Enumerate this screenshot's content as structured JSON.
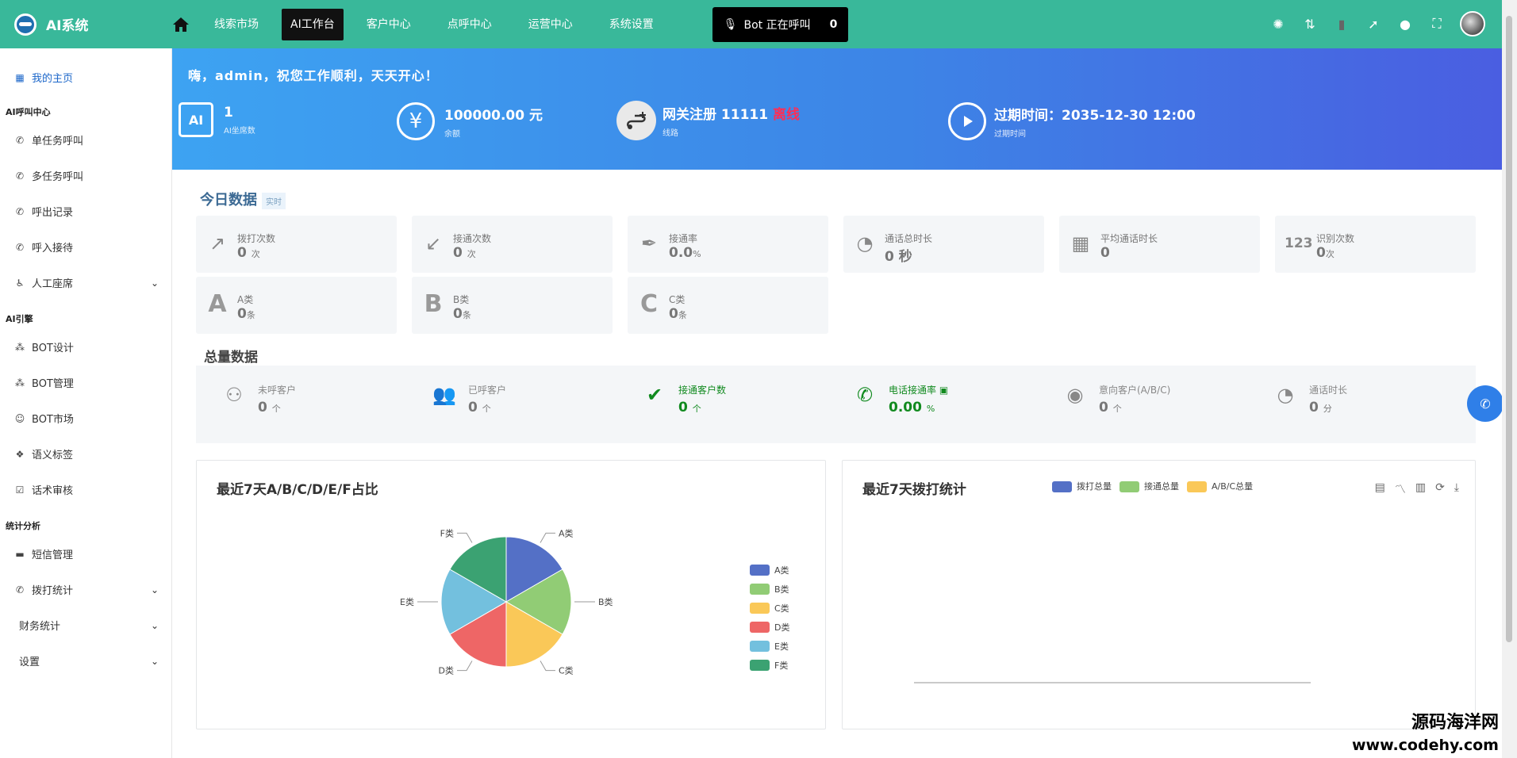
{
  "app": {
    "name": "AI系统"
  },
  "topnav": {
    "items": [
      "线索市场",
      "AI工作台",
      "客户中心",
      "点呼中心",
      "运营中心",
      "系统设置"
    ],
    "active": "AI工作台",
    "bot_status": "Bot 正在呼叫",
    "bot_count": "0"
  },
  "sidebar": {
    "home": "我的主页",
    "sections": [
      {
        "title": "AI呼叫中心",
        "items": [
          "单任务呼叫",
          "多任务呼叫",
          "呼出记录",
          "呼入接待",
          "人工座席"
        ]
      },
      {
        "title": "AI引擎",
        "items": [
          "BOT设计",
          "BOT管理",
          "BOT市场",
          "语义标签",
          "话术审核"
        ]
      },
      {
        "title": "统计分析",
        "items": [
          "短信管理",
          "拨打统计",
          "财务统计",
          "设置"
        ]
      }
    ]
  },
  "banner": {
    "greeting": "嗨，admin，祝您工作顺利，天天开心！",
    "seats_value": "1",
    "seats_label": "AI坐席数",
    "balance_value": "100000.00 元",
    "balance_label": "余额",
    "gateway_prefix": "网关注册 11111",
    "gateway_status": "离线",
    "gateway_label": "线路",
    "expiry_prefix": "过期时间：",
    "expiry_value": "2035-12-30 12:00",
    "expiry_label": "过期时间"
  },
  "today": {
    "title": "今日数据",
    "tag": "实时",
    "cards": [
      {
        "label": "拨打次数",
        "value": "0",
        "unit": "次",
        "icon": "arrow-up-right-icon"
      },
      {
        "label": "接通次数",
        "value": "0",
        "unit": "次",
        "icon": "call-received-icon"
      },
      {
        "label": "接通率",
        "value": "0.0",
        "unit": "%",
        "icon": "feather-icon"
      },
      {
        "label": "通话总时长",
        "value": "0 秒",
        "unit": "",
        "icon": "timer-icon"
      },
      {
        "label": "平均通话时长",
        "value": "0",
        "unit": "",
        "icon": "calendar-clock-icon"
      },
      {
        "label": "识别次数",
        "value": "0",
        "unit": "次",
        "icon": "numbers-icon"
      },
      {
        "label": "A类",
        "value": "0",
        "unit": "条",
        "icon": "letter-a-icon"
      },
      {
        "label": "B类",
        "value": "0",
        "unit": "条",
        "icon": "letter-b-icon"
      },
      {
        "label": "C类",
        "value": "0",
        "unit": "条",
        "icon": "letter-c-icon"
      }
    ]
  },
  "totals": {
    "title": "总量数据",
    "items": [
      {
        "label": "未呼客户",
        "value": "0",
        "unit": "个"
      },
      {
        "label": "已呼客户",
        "value": "0",
        "unit": "个"
      },
      {
        "label": "接通客户数",
        "value": "0",
        "unit": "个"
      },
      {
        "label": "电话接通率",
        "value": "0.00",
        "unit": "%"
      },
      {
        "label": "意向客户(A/B/C)",
        "value": "0",
        "unit": "个"
      },
      {
        "label": "通话时长",
        "value": "0",
        "unit": "分"
      }
    ]
  },
  "pie_panel": {
    "title": "最近7天A/B/C/D/E/F占比"
  },
  "line_panel": {
    "title": "最近7天拨打统计"
  },
  "watermark": {
    "line1": "源码海洋网",
    "line2": "www.codehy.com"
  },
  "colors": {
    "accent": "#39b89a",
    "banner_start": "#3da3f2",
    "banner_end": "#4a5ee1",
    "green": "#118a1f",
    "offline": "#ff2d55"
  },
  "chart_data": [
    {
      "type": "pie",
      "title": "最近7天A/B/C/D/E/F占比",
      "categories": [
        "A类",
        "B类",
        "C类",
        "D类",
        "E类",
        "F类"
      ],
      "values": [
        1,
        1,
        1,
        1,
        1,
        1
      ],
      "colors": [
        "#5470c6",
        "#91cc75",
        "#fac858",
        "#ee6666",
        "#73c0de",
        "#3ba272"
      ],
      "legend": "right"
    },
    {
      "type": "line",
      "title": "最近7天拨打统计",
      "series": [
        {
          "name": "拨打总量",
          "values": [
            0,
            0,
            0,
            0,
            0,
            0,
            0
          ],
          "color": "#5470c6"
        },
        {
          "name": "接通总量",
          "values": [
            0,
            0,
            0,
            0,
            0,
            0,
            0
          ],
          "color": "#91cc75"
        },
        {
          "name": "A/B/C总量",
          "values": [
            0,
            0,
            0,
            0,
            0,
            0,
            0
          ],
          "color": "#fac858"
        }
      ],
      "legend": "top"
    }
  ]
}
